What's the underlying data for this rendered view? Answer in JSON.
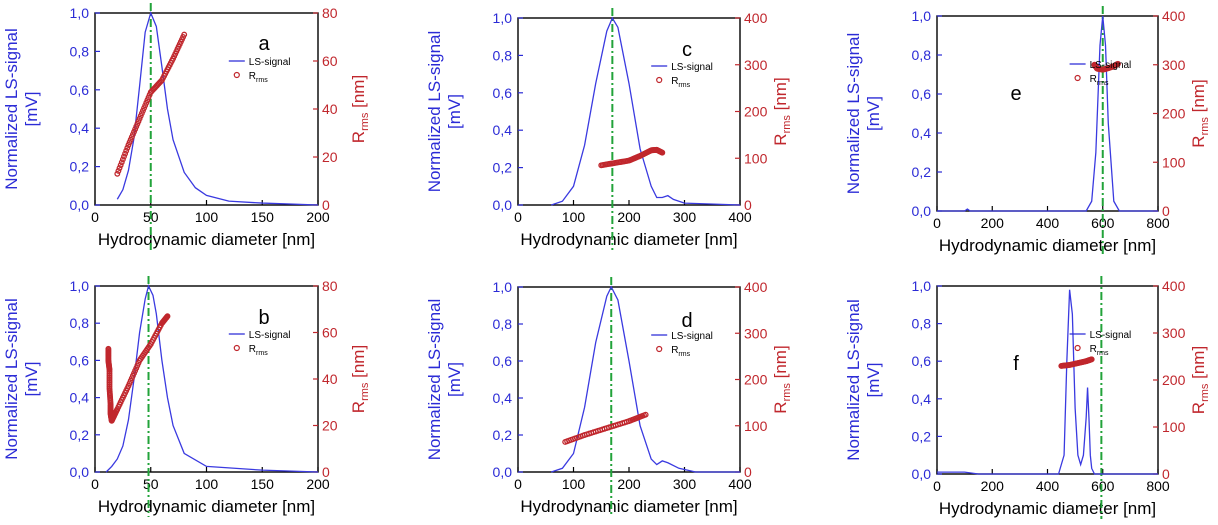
{
  "chart_data": [
    {
      "panel": "a",
      "type": "line",
      "xlabel": "Hydrodynamic diameter [nm]",
      "ylabel_left": [
        "Normalized LS-signal",
        "[mV]"
      ],
      "ylabel_right": {
        "main": "R",
        "sub": "rms",
        "unit": "[nm]"
      },
      "xlim": [
        0,
        200
      ],
      "xticks": [
        0,
        50,
        100,
        150,
        200
      ],
      "ylim_left": [
        0,
        1.0
      ],
      "yticks_left": [
        "0,0",
        "0,2",
        "0,4",
        "0,6",
        "0,8",
        "1,0"
      ],
      "ylim_right": [
        0,
        80
      ],
      "yticks_right": [
        0,
        20,
        40,
        60,
        80
      ],
      "legend_items": [
        "LS-signal",
        "R"
      ],
      "legend_sub": "rms",
      "vline_x": 50,
      "series": [
        {
          "name": "LS-signal",
          "axis": "left",
          "color": "#3a3ae0",
          "x": [
            20,
            25,
            30,
            35,
            40,
            45,
            50,
            55,
            60,
            65,
            70,
            80,
            90,
            100,
            120,
            150,
            200
          ],
          "y": [
            0.03,
            0.08,
            0.18,
            0.35,
            0.62,
            0.9,
            1.0,
            0.93,
            0.72,
            0.5,
            0.34,
            0.17,
            0.09,
            0.05,
            0.02,
            0.01,
            0.0
          ]
        },
        {
          "name": "R",
          "axis": "right",
          "color": "#c0272d",
          "marker": "circle",
          "x": [
            20,
            30,
            40,
            50,
            60,
            70,
            80
          ],
          "y": [
            13,
            25,
            36,
            47,
            52,
            61,
            71
          ]
        }
      ]
    },
    {
      "panel": "b",
      "type": "line",
      "xlabel": "Hydrodynamic diameter [nm]",
      "ylabel_left": [
        "Normalized LS-signal",
        "[mV]"
      ],
      "ylabel_right": {
        "main": "R",
        "sub": "rms",
        "unit": "[nm]"
      },
      "xlim": [
        0,
        200
      ],
      "xticks": [
        0,
        50,
        100,
        150,
        200
      ],
      "ylim_left": [
        0,
        1.0
      ],
      "yticks_left": [
        "0,0",
        "0,2",
        "0,4",
        "0,6",
        "0,8",
        "1,0"
      ],
      "ylim_right": [
        0,
        80
      ],
      "yticks_right": [
        0,
        20,
        40,
        60,
        80
      ],
      "legend_items": [
        "LS-signal",
        "R"
      ],
      "legend_sub": "rms",
      "vline_x": 48,
      "series": [
        {
          "name": "LS-signal",
          "axis": "left",
          "color": "#3a3ae0",
          "x": [
            10,
            15,
            20,
            25,
            30,
            35,
            40,
            45,
            48,
            52,
            55,
            60,
            65,
            70,
            80,
            100,
            150,
            200
          ],
          "y": [
            0.0,
            0.03,
            0.07,
            0.14,
            0.28,
            0.5,
            0.75,
            0.93,
            1.0,
            0.95,
            0.85,
            0.6,
            0.4,
            0.25,
            0.1,
            0.03,
            0.01,
            0.0
          ]
        },
        {
          "name": "R",
          "axis": "right",
          "color": "#c0272d",
          "marker": "circle",
          "x": [
            12,
            12,
            13,
            13,
            14,
            14,
            15,
            20,
            30,
            40,
            50,
            60,
            65
          ],
          "y": [
            53,
            48,
            44,
            36,
            29,
            25,
            22,
            27,
            37,
            48,
            55,
            64,
            67
          ]
        }
      ]
    },
    {
      "panel": "c",
      "type": "line",
      "xlabel": "Hydrodynamic diameter [nm]",
      "ylabel_left": [
        "Normalized LS-signal",
        "[mV]"
      ],
      "ylabel_right": {
        "main": "R",
        "sub": "rms",
        "unit": "[nm]"
      },
      "xlim": [
        0,
        400
      ],
      "xticks": [
        0,
        100,
        200,
        300,
        400
      ],
      "ylim_left": [
        0,
        1.0
      ],
      "yticks_left": [
        "0,0",
        "0,2",
        "0,4",
        "0,6",
        "0,8",
        "1,0"
      ],
      "ylim_right": [
        0,
        400
      ],
      "yticks_right": [
        0,
        100,
        200,
        300,
        400
      ],
      "legend_items": [
        "LS-signal",
        "R"
      ],
      "legend_sub": "rms",
      "vline_x": 170,
      "series": [
        {
          "name": "LS-signal",
          "axis": "left",
          "color": "#3a3ae0",
          "x": [
            60,
            80,
            100,
            120,
            140,
            160,
            170,
            180,
            200,
            220,
            240,
            250,
            260,
            270,
            280,
            300,
            400
          ],
          "y": [
            0.0,
            0.02,
            0.1,
            0.32,
            0.65,
            0.93,
            1.0,
            0.95,
            0.65,
            0.3,
            0.1,
            0.04,
            0.04,
            0.05,
            0.03,
            0.01,
            0.0
          ]
        },
        {
          "name": "R",
          "axis": "right",
          "color": "#c0272d",
          "marker": "circle",
          "x": [
            150,
            175,
            200,
            220,
            240,
            250,
            260
          ],
          "y": [
            85,
            90,
            95,
            105,
            117,
            118,
            112
          ]
        }
      ]
    },
    {
      "panel": "d",
      "type": "line",
      "xlabel": "Hydrodynamic diameter [nm]",
      "ylabel_left": [
        "Normalized LS-signal",
        "[mV]"
      ],
      "ylabel_right": {
        "main": "R",
        "sub": "rms",
        "unit": "[nm]"
      },
      "xlim": [
        0,
        400
      ],
      "xticks": [
        0,
        100,
        200,
        300,
        400
      ],
      "ylim_left": [
        0,
        1.0
      ],
      "yticks_left": [
        "0,0",
        "0,2",
        "0,4",
        "0,6",
        "0,8",
        "1,0"
      ],
      "ylim_right": [
        0,
        400
      ],
      "yticks_right": [
        0,
        100,
        200,
        300,
        400
      ],
      "legend_items": [
        "LS-signal",
        "R"
      ],
      "legend_sub": "rms",
      "vline_x": 168,
      "series": [
        {
          "name": "LS-signal",
          "axis": "left",
          "color": "#3a3ae0",
          "x": [
            60,
            80,
            100,
            120,
            140,
            160,
            168,
            180,
            200,
            220,
            240,
            250,
            260,
            270,
            290,
            320,
            400
          ],
          "y": [
            0.0,
            0.02,
            0.1,
            0.35,
            0.7,
            0.95,
            1.0,
            0.93,
            0.6,
            0.25,
            0.07,
            0.04,
            0.06,
            0.05,
            0.02,
            0.0,
            0.0
          ]
        },
        {
          "name": "R",
          "axis": "right",
          "color": "#c0272d",
          "marker": "circle",
          "x": [
            85,
            120,
            160,
            200,
            230
          ],
          "y": [
            65,
            80,
            95,
            110,
            124
          ]
        }
      ]
    },
    {
      "panel": "e",
      "type": "line",
      "xlabel": "Hydrodynamic diameter [nm]",
      "ylabel_left": [
        "Normalized LS-signal",
        "[mV]"
      ],
      "ylabel_right": {
        "main": "R",
        "sub": "rms",
        "unit": "[nm]"
      },
      "xlim": [
        0,
        800
      ],
      "xticks": [
        0,
        200,
        400,
        600,
        800
      ],
      "ylim_left": [
        0,
        1.0
      ],
      "yticks_left": [
        "0,0",
        "0,2",
        "0,4",
        "0,6",
        "0,8",
        "1,0"
      ],
      "ylim_right": [
        0,
        400
      ],
      "yticks_right": [
        0,
        100,
        200,
        300,
        400
      ],
      "legend_items": [
        "LS-signal",
        "R"
      ],
      "legend_sub": "rms",
      "vline_x": 600,
      "series": [
        {
          "name": "LS-signal",
          "axis": "left",
          "color": "#3a3ae0",
          "x": [
            0,
            100,
            110,
            120,
            300,
            540,
            560,
            575,
            590,
            600,
            610,
            620,
            640,
            660,
            800
          ],
          "y": [
            0.0,
            0.0,
            0.01,
            0.0,
            0.0,
            0.0,
            0.05,
            0.3,
            0.85,
            1.0,
            0.85,
            0.45,
            0.05,
            0.0,
            0.0
          ]
        },
        {
          "name": "R",
          "axis": "right",
          "color": "#c0272d",
          "marker": "circle",
          "x": [
            570,
            580,
            600,
            620,
            640,
            655
          ],
          "y": [
            300,
            292,
            290,
            293,
            297,
            302
          ]
        }
      ]
    },
    {
      "panel": "f",
      "type": "line",
      "xlabel": "Hydrodynamic diameter [nm]",
      "ylabel_left": [
        "Normalized LS-signal",
        "[mV]"
      ],
      "ylabel_right": {
        "main": "R",
        "sub": "rms",
        "unit": "[nm]"
      },
      "xlim": [
        0,
        800
      ],
      "xticks": [
        0,
        200,
        400,
        600,
        800
      ],
      "ylim_left": [
        0,
        1.0
      ],
      "yticks_left": [
        "0,0",
        "0,2",
        "0,4",
        "0,6",
        "0,8",
        "1,0"
      ],
      "ylim_right": [
        0,
        400
      ],
      "yticks_right": [
        0,
        100,
        200,
        300,
        400
      ],
      "legend_items": [
        "LS-signal",
        "R"
      ],
      "legend_sub": "rms",
      "vline_x": 595,
      "series": [
        {
          "name": "LS-signal",
          "axis": "left",
          "color": "#3a3ae0",
          "x": [
            0,
            100,
            150,
            300,
            440,
            460,
            470,
            480,
            490,
            500,
            510,
            520,
            530,
            540,
            545,
            550,
            555,
            560,
            570,
            800
          ],
          "y": [
            0.01,
            0.01,
            0.0,
            0.0,
            0.0,
            0.1,
            0.6,
            0.98,
            0.85,
            0.35,
            0.1,
            0.05,
            0.1,
            0.3,
            0.46,
            0.3,
            0.1,
            0.03,
            0.0,
            0.0
          ]
        },
        {
          "name": "R",
          "axis": "right",
          "color": "#c0272d",
          "marker": "circle",
          "x": [
            450,
            480,
            510,
            540,
            560
          ],
          "y": [
            230,
            232,
            236,
            240,
            244
          ]
        }
      ]
    }
  ]
}
